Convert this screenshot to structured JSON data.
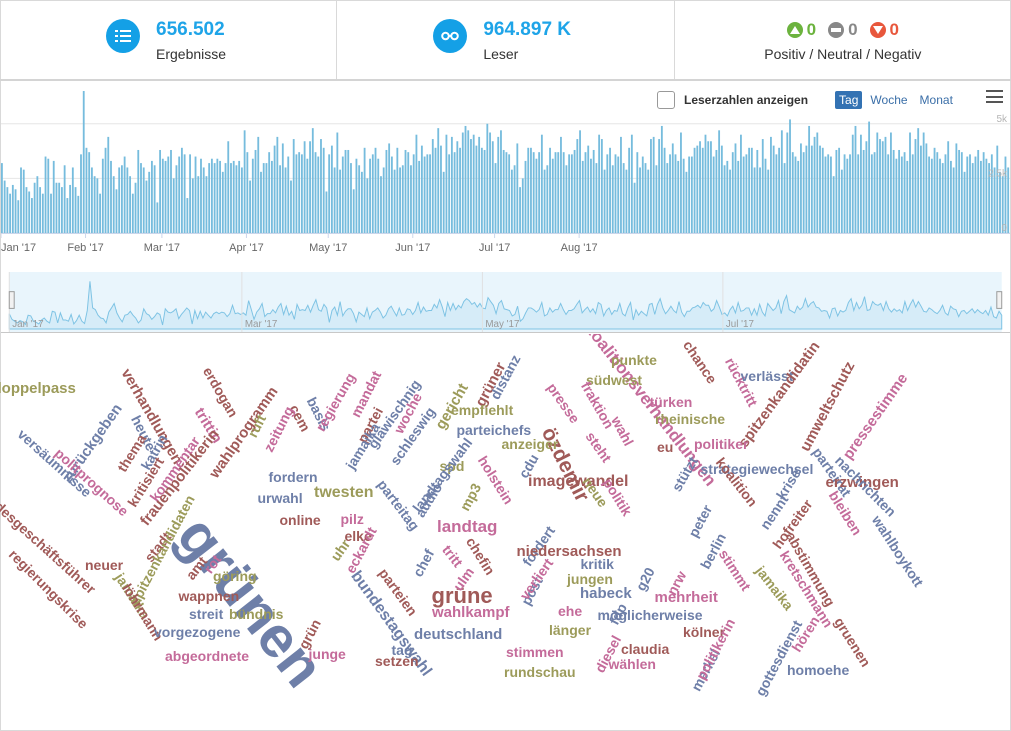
{
  "kpis": {
    "results": {
      "value": "656.502",
      "label": "Ergebnisse",
      "icon": "list-icon"
    },
    "readers": {
      "value": "964.897 K",
      "label": "Leser",
      "icon": "glasses-icon"
    },
    "sentiment": {
      "positive": "0",
      "neutral": "0",
      "negative": "0",
      "label": "Positiv / Neutral / Negativ",
      "colors": {
        "positive": "#6cb33e",
        "neutral": "#888888",
        "negative": "#e8573c"
      }
    }
  },
  "chart_controls": {
    "checkbox_label": "Leserzahlen anzeigen",
    "periods": [
      "Tag",
      "Woche",
      "Monat"
    ],
    "active_period": "Tag"
  },
  "colors": {
    "accent": "#14a0e6",
    "bar": "#76bcdd",
    "nav_fill": "#d6ecf8",
    "nav_line": "#7ec3e4"
  },
  "chart_data": {
    "type": "bar",
    "x_tick_labels": [
      "Jan '17",
      "Feb '17",
      "Mar '17",
      "Apr '17",
      "May '17",
      "Jun '17",
      "Jul '17",
      "Aug '17"
    ],
    "y_tick_labels": [
      "5k",
      "2.5k",
      "0"
    ],
    "ylim": [
      0,
      6500
    ],
    "grid": true,
    "navigator_tick_labels": [
      "Jan '17",
      "Mar '17",
      "May '17",
      "Jul '17"
    ],
    "daily_values": [
      3200,
      2400,
      2100,
      1800,
      2200,
      2000,
      1500,
      3000,
      2900,
      2100,
      1900,
      1600,
      2300,
      2600,
      2100,
      1800,
      3500,
      3400,
      1800,
      3300,
      2300,
      2300,
      2100,
      3100,
      1600,
      2200,
      3000,
      2100,
      1700,
      3600,
      6500,
      3900,
      3700,
      3000,
      2600,
      2500,
      1800,
      3400,
      3900,
      4400,
      3300,
      2600,
      2000,
      3000,
      3100,
      3500,
      3000,
      2600,
      1800,
      2300,
      3800,
      3200,
      3000,
      2400,
      2800,
      3300,
      3100,
      1400,
      3800,
      3400,
      3300,
      3500,
      3800,
      2500,
      3100,
      3500,
      3900,
      3600,
      1600,
      3600,
      2500,
      3500,
      2600,
      3400,
      3000,
      2600,
      3200,
      3400,
      3200,
      3400,
      3300,
      2800,
      3200,
      4200,
      3200,
      3300,
      3100,
      3300,
      3000,
      4700,
      3700,
      2400,
      3400,
      3800,
      4400,
      2800,
      3200,
      3200,
      3700,
      3300,
      4000,
      4400,
      3100,
      4100,
      3000,
      3500,
      2400,
      4300,
      3600,
      3700,
      3600,
      4200,
      3400,
      4200,
      4800,
      3700,
      3500,
      4300,
      3900,
      1900,
      3600,
      4000,
      3000,
      4600,
      2900,
      3500,
      3800,
      3800,
      3200,
      2000,
      3400,
      3100,
      2800,
      3900,
      2500,
      3400,
      3600,
      3900,
      3400,
      2600,
      3000,
      3800,
      4100,
      3500,
      2900,
      3900,
      3000,
      3100,
      3800,
      3700,
      3100,
      3600,
      4500,
      3300,
      4000,
      3500,
      3600,
      3600,
      4300,
      3900,
      4800,
      4000,
      2800,
      4500,
      3600,
      4400,
      3700,
      4200,
      3900,
      4600,
      4900,
      4700,
      4300,
      4500,
      4000,
      4400,
      3900,
      3800,
      5000,
      4600,
      4200,
      3200,
      4400,
      4700,
      3800,
      3700,
      3600,
      2900,
      3100,
      4100,
      2100,
      2500,
      3300,
      3900,
      3900,
      3700,
      3400,
      3700,
      4500,
      2900,
      3100,
      3900,
      3400,
      3700,
      3700,
      4400,
      3700,
      3100,
      3600,
      3600,
      3800,
      4300,
      4700,
      3300,
      3700,
      4000,
      3400,
      3800,
      3200,
      4500,
      4300,
      2900,
      3600,
      3900,
      3100,
      3600,
      3500,
      4400,
      3200,
      2900,
      3900,
      4500,
      2300,
      3700,
      3000,
      3500,
      3200,
      2900,
      4300,
      4400,
      3100,
      4300,
      4900,
      3900,
      3200,
      3600,
      4100,
      3600,
      3300,
      4600,
      3400,
      2800,
      3500,
      3500,
      3900,
      4000,
      4200,
      3900,
      4500,
      4200,
      4200,
      3500,
      3800,
      4700,
      4000,
      3100,
      3300,
      2900,
      3700,
      4100,
      3300,
      4500,
      3500,
      3600,
      3900,
      3900,
      3000,
      3800,
      3000,
      4300,
      3400,
      2900,
      4400,
      4000,
      3600,
      3900,
      4700,
      3200,
      4600,
      5200,
      3700,
      3500,
      3300,
      4100,
      3700,
      4000,
      4900,
      4000,
      4400,
      4600,
      4000,
      3900,
      3500,
      3600,
      3500,
      2600,
      3800,
      3900,
      2900,
      3600,
      3400,
      3600,
      4500,
      4900,
      3600,
      4500,
      3800,
      4200,
      5100,
      3600,
      3700,
      4600,
      4300,
      4200,
      4400,
      3600,
      4600,
      3800,
      3400,
      3800,
      3500,
      3700,
      3300,
      4600,
      3600,
      4300,
      4800,
      4000,
      4600,
      4100,
      3500,
      3400,
      3900,
      3700,
      3400,
      3200,
      3600,
      4200,
      3300,
      3000,
      4100,
      3800,
      3700,
      2800,
      3500,
      3600,
      3200,
      3500,
      3800,
      3300,
      3700,
      3400,
      3200,
      3600,
      3000,
      4000,
      2800,
      2600,
      3500,
      3000
    ]
  },
  "wordcloud": [
    {
      "text": "grünen",
      "color": "#6e7fa8"
    },
    {
      "text": "grüne",
      "color": "#a05a58"
    },
    {
      "text": "özdemir",
      "color": "#a05a58"
    },
    {
      "text": "landtag",
      "color": "#c46b9a"
    },
    {
      "text": "imagewandel",
      "color": "#a05a58"
    },
    {
      "text": "twesten",
      "color": "#9c9b5a"
    },
    {
      "text": "bundestagswahl",
      "color": "#6e7fa8"
    },
    {
      "text": "koalitionsverhandlungen",
      "color": "#c46b9a"
    },
    {
      "text": "doppelpass",
      "color": "#9c9b5a"
    },
    {
      "text": "verhandlungen",
      "color": "#a05a58"
    },
    {
      "text": "erdogan",
      "color": "#a05a58"
    },
    {
      "text": "trittin",
      "color": "#c46b9a"
    },
    {
      "text": "zurückgeben",
      "color": "#6e7fa8"
    },
    {
      "text": "heute",
      "color": "#6e7fa8"
    },
    {
      "text": "wahlprogramm",
      "color": "#a05a58"
    },
    {
      "text": "cem",
      "color": "#a05a58"
    },
    {
      "text": "basis",
      "color": "#6e7fa8"
    },
    {
      "text": "mandat",
      "color": "#c46b9a"
    },
    {
      "text": "regierung",
      "color": "#c46b9a"
    },
    {
      "text": "partei",
      "color": "#a05a58"
    },
    {
      "text": "woche",
      "color": "#c46b9a"
    },
    {
      "text": "gericht",
      "color": "#9c9b5a"
    },
    {
      "text": "grüner",
      "color": "#a05a58"
    },
    {
      "text": "distanz",
      "color": "#6e7fa8"
    },
    {
      "text": "punkte",
      "color": "#9c9b5a"
    },
    {
      "text": "südwest",
      "color": "#9c9b5a"
    },
    {
      "text": "chance",
      "color": "#a05a58"
    },
    {
      "text": "rücktritt",
      "color": "#c46b9a"
    },
    {
      "text": "verlässt",
      "color": "#6e7fa8"
    },
    {
      "text": "spitzenkandidatin",
      "color": "#a05a58"
    },
    {
      "text": "umweltschutz",
      "color": "#a05a58"
    },
    {
      "text": "pressestimme",
      "color": "#c46b9a"
    },
    {
      "text": "presse",
      "color": "#c46b9a"
    },
    {
      "text": "fraktion",
      "color": "#c46b9a"
    },
    {
      "text": "türken",
      "color": "#c46b9a"
    },
    {
      "text": "rheinische",
      "color": "#9c9b5a"
    },
    {
      "text": "empfiehlt",
      "color": "#9c9b5a"
    },
    {
      "text": "parteichefs",
      "color": "#6e7fa8"
    },
    {
      "text": "anzeiger",
      "color": "#9c9b5a"
    },
    {
      "text": "politiker",
      "color": "#c46b9a"
    },
    {
      "text": "strategiewechsel",
      "color": "#6e7fa8"
    },
    {
      "text": "thema",
      "color": "#a05a58"
    },
    {
      "text": "katrin",
      "color": "#6e7fa8"
    },
    {
      "text": "ruft",
      "color": "#9c9b5a"
    },
    {
      "text": "zeitung",
      "color": "#c46b9a"
    },
    {
      "text": "glawischnig",
      "color": "#6e7fa8"
    },
    {
      "text": "jamaika",
      "color": "#6e7fa8"
    },
    {
      "text": "schleswig",
      "color": "#6e7fa8"
    },
    {
      "text": "spd",
      "color": "#9c9b5a"
    },
    {
      "text": "landtagswahl",
      "color": "#6e7fa8"
    },
    {
      "text": "cdu",
      "color": "#6e7fa8"
    },
    {
      "text": "holstein",
      "color": "#c46b9a"
    },
    {
      "text": "steht",
      "color": "#c46b9a"
    },
    {
      "text": "wahl",
      "color": "#c46b9a"
    },
    {
      "text": "eu",
      "color": "#a05a58"
    },
    {
      "text": "stützt",
      "color": "#6e7fa8"
    },
    {
      "text": "koalition",
      "color": "#a05a58"
    },
    {
      "text": "krise",
      "color": "#6e7fa8"
    },
    {
      "text": "parteirat",
      "color": "#6e7fa8"
    },
    {
      "text": "erzwingen",
      "color": "#a05a58"
    },
    {
      "text": "versäumnisse",
      "color": "#6e7fa8"
    },
    {
      "text": "politprognose",
      "color": "#c46b9a"
    },
    {
      "text": "kritisiert",
      "color": "#a05a58"
    },
    {
      "text": "kommentar",
      "color": "#c46b9a"
    },
    {
      "text": "frauenpolitikerin",
      "color": "#a05a58"
    },
    {
      "text": "fordern",
      "color": "#6e7fa8"
    },
    {
      "text": "urwahl",
      "color": "#6e7fa8"
    },
    {
      "text": "audio",
      "color": "#6e7fa8"
    },
    {
      "text": "mp3",
      "color": "#9c9b5a"
    },
    {
      "text": "online",
      "color": "#a05a58"
    },
    {
      "text": "pilz",
      "color": "#c46b9a"
    },
    {
      "text": "elke",
      "color": "#a05a58"
    },
    {
      "text": "parteitag",
      "color": "#6e7fa8"
    },
    {
      "text": "neue",
      "color": "#9c9b5a"
    },
    {
      "text": "politik",
      "color": "#c46b9a"
    },
    {
      "text": "peter",
      "color": "#6e7fa8"
    },
    {
      "text": "nennt",
      "color": "#6e7fa8"
    },
    {
      "text": "hofreiter",
      "color": "#a05a58"
    },
    {
      "text": "bleiben",
      "color": "#c46b9a"
    },
    {
      "text": "nachrichten",
      "color": "#6e7fa8"
    },
    {
      "text": "bundesgeschäftsführer",
      "color": "#a05a58"
    },
    {
      "text": "stadt",
      "color": "#a05a58"
    },
    {
      "text": "spitzenkandidaten",
      "color": "#9c9b5a"
    },
    {
      "text": "eckardt",
      "color": "#c46b9a"
    },
    {
      "text": "uhr",
      "color": "#9c9b5a"
    },
    {
      "text": "tritt",
      "color": "#c46b9a"
    },
    {
      "text": "chefin",
      "color": "#a05a58"
    },
    {
      "text": "fordert",
      "color": "#6e7fa8"
    },
    {
      "text": "niedersachsen",
      "color": "#a05a58"
    },
    {
      "text": "berlin",
      "color": "#6e7fa8"
    },
    {
      "text": "stimmt",
      "color": "#c46b9a"
    },
    {
      "text": "abstimmung",
      "color": "#a05a58"
    },
    {
      "text": "wahlboykott",
      "color": "#6e7fa8"
    },
    {
      "text": "regierungskrise",
      "color": "#a05a58"
    },
    {
      "text": "neuer",
      "color": "#a05a58"
    },
    {
      "text": "jamaika",
      "color": "#9c9b5a"
    },
    {
      "text": "rot",
      "color": "#c46b9a"
    },
    {
      "text": "amt",
      "color": "#a05a58"
    },
    {
      "text": "göring",
      "color": "#9c9b5a"
    },
    {
      "text": "chef",
      "color": "#6e7fa8"
    },
    {
      "text": "ulm",
      "color": "#c46b9a"
    },
    {
      "text": "parteien",
      "color": "#a05a58"
    },
    {
      "text": "post",
      "color": "#6e7fa8"
    },
    {
      "text": "verliert",
      "color": "#c46b9a"
    },
    {
      "text": "kritik",
      "color": "#6e7fa8"
    },
    {
      "text": "jungen",
      "color": "#9c9b5a"
    },
    {
      "text": "g20",
      "color": "#6e7fa8"
    },
    {
      "text": "nrw",
      "color": "#c46b9a"
    },
    {
      "text": "jamaika",
      "color": "#9c9b5a"
    },
    {
      "text": "kretschmann",
      "color": "#c46b9a"
    },
    {
      "text": "wappnen",
      "color": "#a05a58"
    },
    {
      "text": "löhrmann",
      "color": "#a05a58"
    },
    {
      "text": "streit",
      "color": "#6e7fa8"
    },
    {
      "text": "bündnis",
      "color": "#9c9b5a"
    },
    {
      "text": "habeck",
      "color": "#6e7fa8"
    },
    {
      "text": "mehrheit",
      "color": "#c46b9a"
    },
    {
      "text": "vorgezogene",
      "color": "#6e7fa8"
    },
    {
      "text": "wahlkampf",
      "color": "#c46b9a"
    },
    {
      "text": "ehe",
      "color": "#c46b9a"
    },
    {
      "text": "fdp",
      "color": "#6e7fa8"
    },
    {
      "text": "möglicherweise",
      "color": "#6e7fa8"
    },
    {
      "text": "gottesdienst",
      "color": "#6e7fa8"
    },
    {
      "text": "hören",
      "color": "#c46b9a"
    },
    {
      "text": "gruenen",
      "color": "#a05a58"
    },
    {
      "text": "grün",
      "color": "#a05a58"
    },
    {
      "text": "deutschland",
      "color": "#6e7fa8"
    },
    {
      "text": "länger",
      "color": "#9c9b5a"
    },
    {
      "text": "kölner",
      "color": "#a05a58"
    },
    {
      "text": "abgeordnete",
      "color": "#c46b9a"
    },
    {
      "text": "junge",
      "color": "#c46b9a"
    },
    {
      "text": "tag",
      "color": "#6e7fa8"
    },
    {
      "text": "setzen",
      "color": "#a05a58"
    },
    {
      "text": "stimmen",
      "color": "#c46b9a"
    },
    {
      "text": "diesel",
      "color": "#c46b9a"
    },
    {
      "text": "claudia",
      "color": "#a05a58"
    },
    {
      "text": "merkel",
      "color": "#6e7fa8"
    },
    {
      "text": "politikerin",
      "color": "#c46b9a"
    },
    {
      "text": "homoehe",
      "color": "#6e7fa8"
    },
    {
      "text": "wählen",
      "color": "#c46b9a"
    },
    {
      "text": "rundschau",
      "color": "#9c9b5a"
    }
  ]
}
